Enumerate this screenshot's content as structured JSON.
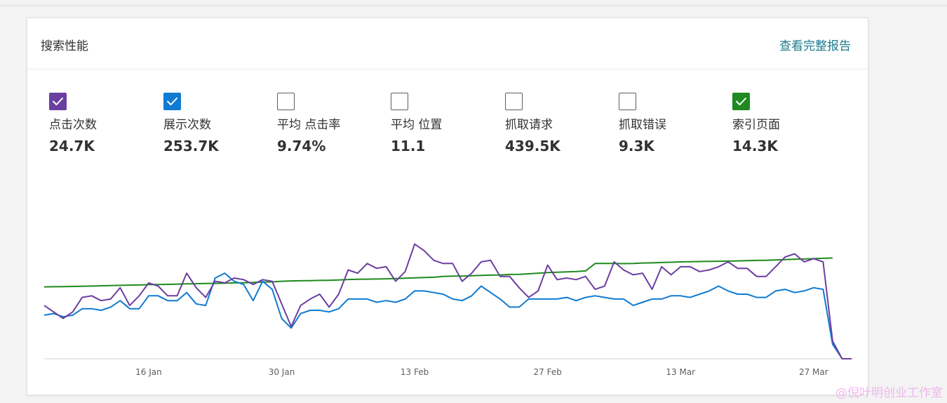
{
  "card": {
    "title": "搜索性能",
    "link": "查看完整报告"
  },
  "metrics": [
    {
      "label": "点击次数",
      "value": "24.7K",
      "checked": true,
      "color": "#6b3fa0"
    },
    {
      "label": "展示次数",
      "value": "253.7K",
      "checked": true,
      "color": "#0f7bd2"
    },
    {
      "label": "平均 点击率",
      "value": "9.74%",
      "checked": false,
      "color": "#605e5c"
    },
    {
      "label": "平均 位置",
      "value": "11.1",
      "checked": false,
      "color": "#605e5c"
    },
    {
      "label": "抓取请求",
      "value": "439.5K",
      "checked": false,
      "color": "#605e5c"
    },
    {
      "label": "抓取错误",
      "value": "9.3K",
      "checked": false,
      "color": "#605e5c"
    },
    {
      "label": "索引页面",
      "value": "14.3K",
      "checked": true,
      "color": "#1f8a1f"
    }
  ],
  "chart_data": {
    "type": "line",
    "x_tick_labels": [
      "16 Jan",
      "30 Jan",
      "13 Feb",
      "27 Feb",
      "13 Mar",
      "27 Mar"
    ],
    "x_tick_index": [
      11,
      25,
      39,
      53,
      67,
      81
    ],
    "grid": false,
    "legend": "metric checkboxes at top",
    "y_scale": [
      0,
      100
    ],
    "series": [
      {
        "name": "点击次数",
        "color": "#6b3fa0",
        "values": [
          33,
          29,
          25,
          29,
          38,
          39,
          36,
          37,
          44,
          33,
          39,
          47,
          45,
          39,
          39,
          53,
          44,
          38,
          48,
          47,
          50,
          49,
          46,
          49,
          48,
          34,
          20,
          33,
          37,
          40,
          32,
          40,
          55,
          53,
          59,
          56,
          57,
          48,
          54,
          71,
          67,
          61,
          59,
          59,
          48,
          53,
          60,
          61,
          51,
          51,
          44,
          38,
          42,
          58,
          49,
          50,
          49,
          51,
          43,
          45,
          60,
          55,
          52,
          53,
          43,
          57,
          52,
          57,
          57,
          54,
          55,
          57,
          60,
          56,
          56,
          51,
          51,
          57,
          63,
          65,
          60,
          62,
          60,
          11,
          0,
          0
        ],
        "extra_values": [
          62,
          59,
          11,
          0,
          0
        ]
      },
      {
        "name": "展示次数",
        "color": "#0f7bd2",
        "values": [
          27,
          28,
          26,
          27,
          31,
          31,
          30,
          32,
          36,
          31,
          31,
          39,
          39,
          36,
          36,
          41,
          34,
          33,
          50,
          53,
          48,
          46,
          36,
          48,
          43,
          25,
          19,
          28,
          30,
          30,
          29,
          31,
          37,
          37,
          37,
          35,
          36,
          35,
          37,
          42,
          42,
          41,
          40,
          37,
          36,
          39,
          45,
          41,
          37,
          32,
          32,
          37,
          37,
          37,
          37,
          38,
          36,
          38,
          39,
          38,
          37,
          37,
          33,
          35,
          37,
          37,
          39,
          39,
          38,
          40,
          42,
          45,
          42,
          40,
          40,
          38,
          38,
          42,
          43,
          41,
          42,
          44,
          43,
          9,
          0,
          0
        ]
      },
      {
        "name": "索引页面",
        "color": "#1f8a1f",
        "values": [
          44.5,
          44.6,
          44.7,
          44.8,
          44.9,
          45.0,
          45.2,
          45.3,
          45.5,
          45.6,
          45.7,
          45.9,
          46.0,
          46.1,
          46.2,
          46.4,
          46.5,
          46.6,
          46.7,
          46.8,
          47.0,
          47.1,
          47.3,
          47.5,
          47.6,
          48.0,
          48.2,
          48.3,
          48.4,
          48.5,
          48.6,
          48.8,
          49.1,
          49.2,
          49.3,
          49.4,
          49.5,
          49.7,
          49.9,
          50.1,
          50.3,
          50.5,
          51.0,
          51.2,
          51.2,
          51.4,
          51.6,
          51.8,
          51.9,
          52.2,
          52.3,
          52.6,
          53.0,
          53.4,
          53.6,
          53.8,
          54.0,
          54.4,
          59.0,
          59.0,
          59.0,
          58.9,
          59.0,
          59.3,
          59.4,
          59.6,
          59.8,
          60.0,
          60.1,
          60.2,
          60.3,
          60.4,
          60.5,
          60.6,
          60.8,
          60.9,
          61.0,
          61.2,
          61.4,
          61.6,
          61.8,
          62.0,
          62.2,
          62.4
        ]
      }
    ]
  },
  "watermark": "@倪叶明创业工作室"
}
